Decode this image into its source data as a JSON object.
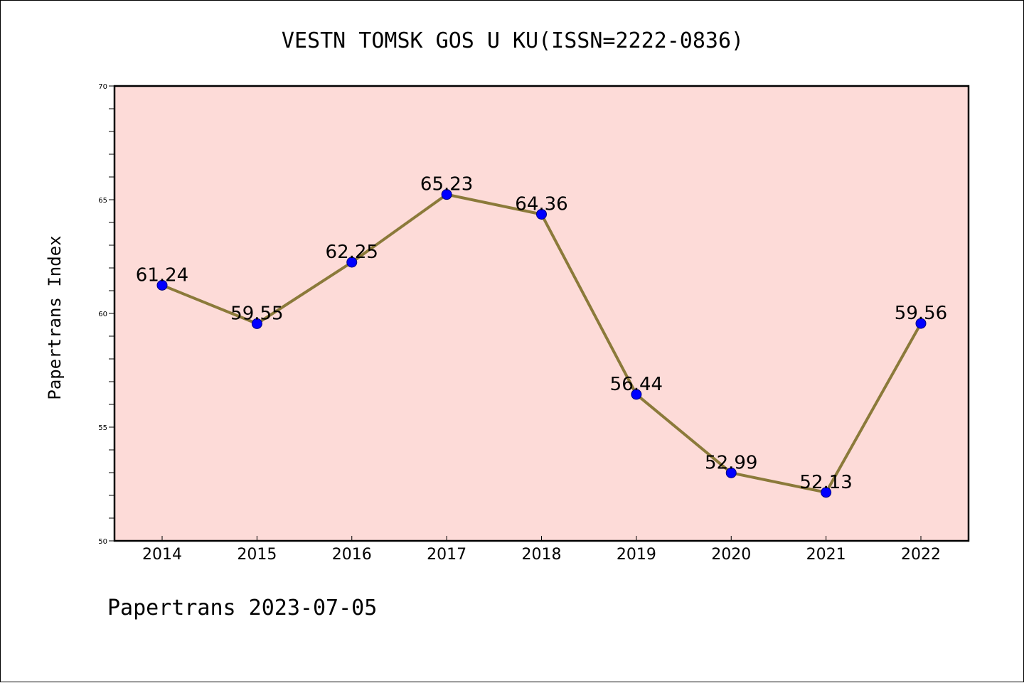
{
  "chart_data": {
    "type": "line",
    "title": "VESTN TOMSK GOS U KU(ISSN=2222-0836)",
    "xlabel": "",
    "ylabel": "Papertrans Index",
    "footer": "Papertrans 2023-07-05",
    "categories": [
      "2014",
      "2015",
      "2016",
      "2017",
      "2018",
      "2019",
      "2020",
      "2021",
      "2022"
    ],
    "series": [
      {
        "values": [
          61.24,
          59.55,
          62.25,
          65.23,
          64.36,
          56.44,
          52.99,
          52.13,
          59.56
        ],
        "labels": [
          "61.24",
          "59.55",
          "62.25",
          "65.23",
          "64.36",
          "56.44",
          "52.99",
          "52.13",
          "59.56"
        ]
      }
    ],
    "ylim": [
      50,
      70
    ],
    "yticks": [
      "50",
      "55",
      "60",
      "65",
      "70"
    ],
    "ytick_values": [
      50,
      55,
      60,
      65,
      70
    ],
    "grid": false,
    "colors": {
      "plot_background": "#fddbd8",
      "line": "#8b7a3a",
      "marker": "#0000ff",
      "marker_edge": "#000080"
    }
  }
}
